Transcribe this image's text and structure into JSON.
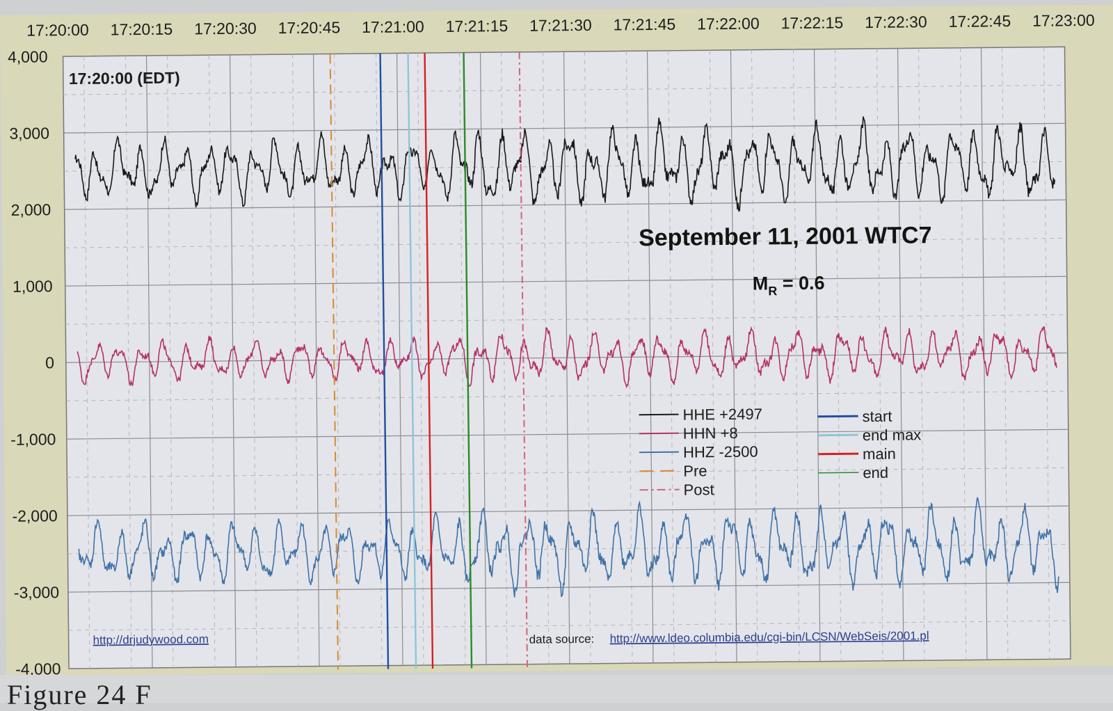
{
  "chart_data": {
    "type": "line",
    "title": "September 11, 2001 WTC7",
    "subtitle": "M_R = 0.6",
    "time_label": "17:20:00 (EDT)",
    "xlabel": "",
    "ylabel": "",
    "ylim": [
      -4000,
      4000
    ],
    "x_tick_labels": [
      "17:20:00",
      "17:20:15",
      "17:20:30",
      "17:20:45",
      "17:21:00",
      "17:21:15",
      "17:21:30",
      "17:21:45",
      "17:22:00",
      "17:22:15",
      "17:22:30",
      "17:22:45",
      "17:23:00"
    ],
    "y_tick_labels": [
      "4,000",
      "3,000",
      "2,000",
      "1,000",
      "0",
      "-1,000",
      "-2,000",
      "-3,000",
      "-4,000"
    ],
    "y_ticks": [
      4000,
      3000,
      2000,
      1000,
      0,
      -1000,
      -2000,
      -3000,
      -4000
    ],
    "grid": true,
    "series": [
      {
        "name": "HHE +2497",
        "offset": 2497,
        "color": "#1a1a1a",
        "amplitude_est": 450,
        "range_est": [
          2000,
          3250
        ]
      },
      {
        "name": "HHN +8",
        "offset": 8,
        "color": "#b5306a",
        "amplitude_est": 300,
        "range_est": [
          -500,
          550
        ]
      },
      {
        "name": "HHZ -2500",
        "offset": -2500,
        "color": "#3f72a8",
        "amplitude_est": 450,
        "range_est": [
          -3400,
          -1950
        ]
      }
    ],
    "markers": [
      {
        "name": "Pre",
        "color": "#d98a2b",
        "style": "dashed",
        "time": "17:20:48"
      },
      {
        "name": "start",
        "color": "#1f4fa0",
        "style": "solid",
        "time": "17:20:57"
      },
      {
        "name": "end max",
        "color": "#8ec5d8",
        "style": "solid",
        "time": "17:21:02"
      },
      {
        "name": "main",
        "color": "#d42020",
        "style": "solid",
        "time": "17:21:05"
      },
      {
        "name": "end",
        "color": "#2a8a2a",
        "style": "solid",
        "time": "17:21:12"
      },
      {
        "name": "Post",
        "color": "#d5607a",
        "style": "dash-dot",
        "time": "17:21:22"
      }
    ],
    "legend_position": "center-right, inside plot"
  },
  "legend": {
    "left": [
      {
        "label": "HHE  +2497",
        "color": "#1a1a1a",
        "style": "solid"
      },
      {
        "label": "HHN +8",
        "color": "#b5306a",
        "style": "solid"
      },
      {
        "label": "HHZ  -2500",
        "color": "#3f72a8",
        "style": "solid"
      },
      {
        "label": "Pre",
        "color": "#d98a2b",
        "style": "dashed"
      },
      {
        "label": "Post",
        "color": "#d5607a",
        "style": "dashdot"
      }
    ],
    "right": [
      {
        "label": "start",
        "color": "#1f4fa0",
        "style": "solid"
      },
      {
        "label": "end max",
        "color": "#8ec5d8",
        "style": "solid"
      },
      {
        "label": "main",
        "color": "#d42020",
        "style": "solid"
      },
      {
        "label": "end",
        "color": "#2a8a2a",
        "style": "solid"
      }
    ]
  },
  "links": {
    "author": "http://drjudywood.com",
    "source_prefix": "data source:",
    "source_url": "http://www.ldeo.columbia.edu/cgi-bin/LCSN/WebSeis/2001.pl"
  },
  "caption_fragment": "Figure 24  F"
}
